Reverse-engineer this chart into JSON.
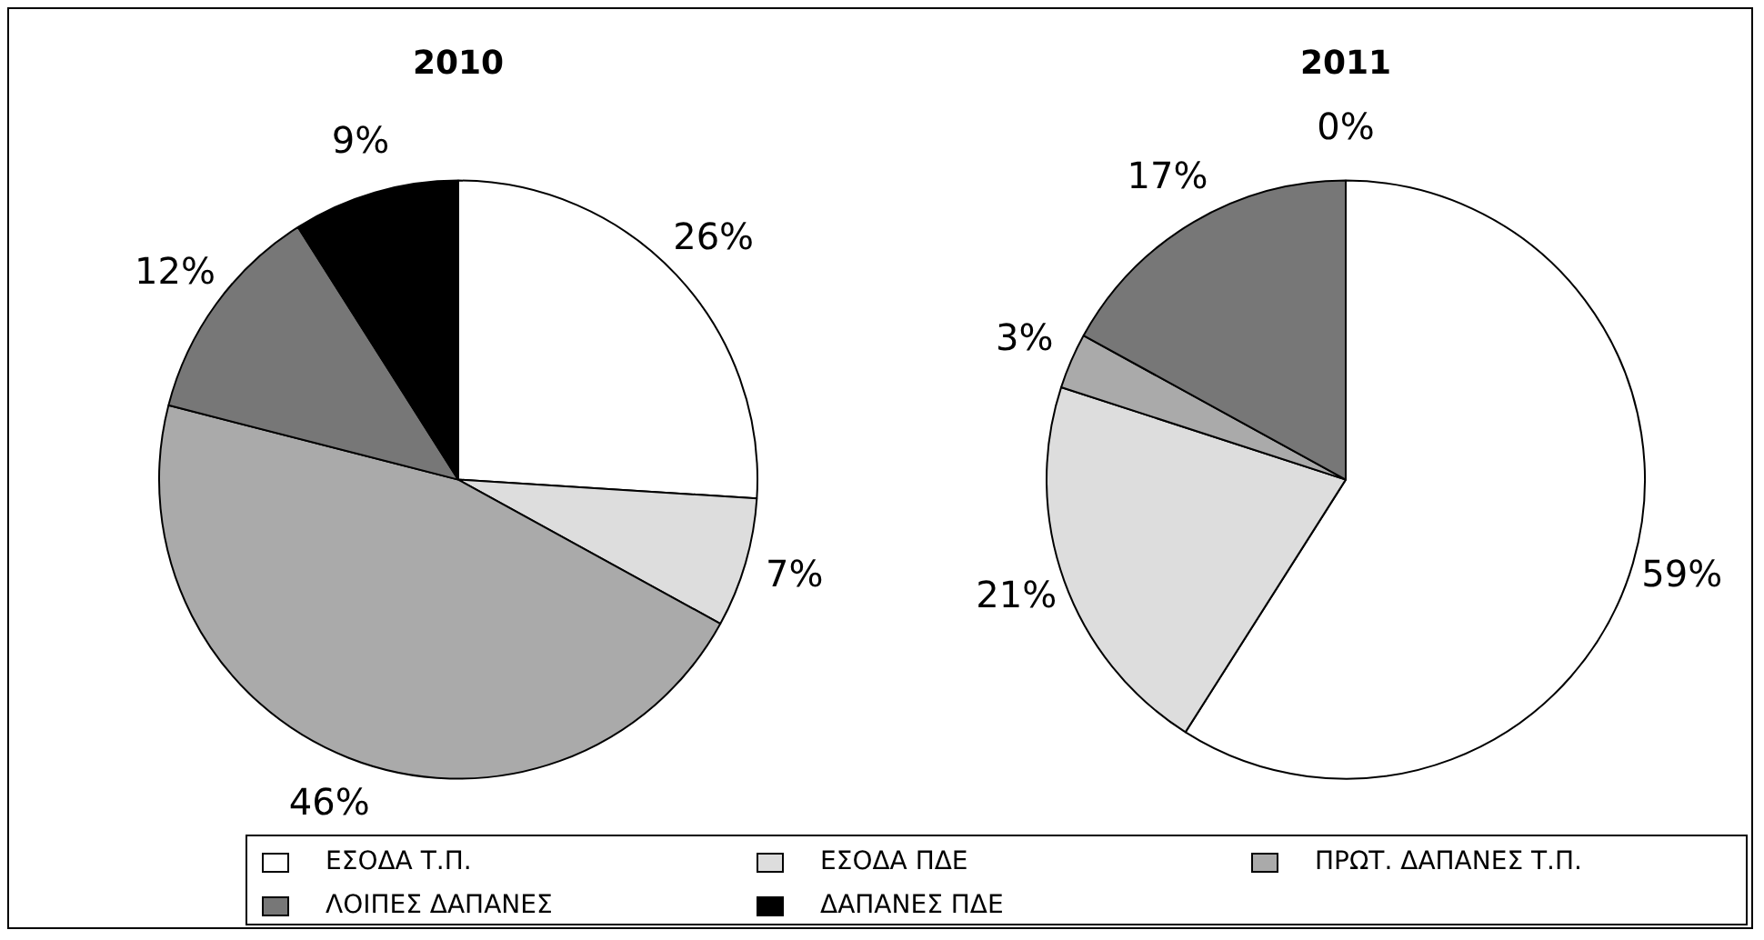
{
  "chart_data": [
    {
      "type": "pie",
      "title": "2010",
      "categories": [
        "ΕΣΟΔΑ Τ.Π.",
        "ΕΣΟΔΑ ΠΔΕ",
        "ΠΡΩΤ. ΔΑΠΑΝΕΣ Τ.Π.",
        "ΛΟΙΠΕΣ ΔΑΠΑΝΕΣ",
        "ΔΑΠΑΝΕΣ ΠΔΕ"
      ],
      "values": [
        26,
        7,
        46,
        12,
        9
      ],
      "value_labels": [
        "26%",
        "7%",
        "46%",
        "12%",
        "9%"
      ],
      "colors": [
        "#ffffff",
        "#dddddd",
        "#aaaaaa",
        "#777777",
        "#000000"
      ],
      "legend": "bottom"
    },
    {
      "type": "pie",
      "title": "2011",
      "categories": [
        null,
        null,
        null,
        null,
        null
      ],
      "values": [
        59,
        21,
        3,
        17,
        0
      ],
      "value_labels": [
        "59%",
        "21%",
        "3%",
        "17%",
        "0%"
      ],
      "colors": [
        "#ffffff",
        "#dddddd",
        "#aaaaaa",
        "#777777",
        "#000000"
      ]
    }
  ]
}
